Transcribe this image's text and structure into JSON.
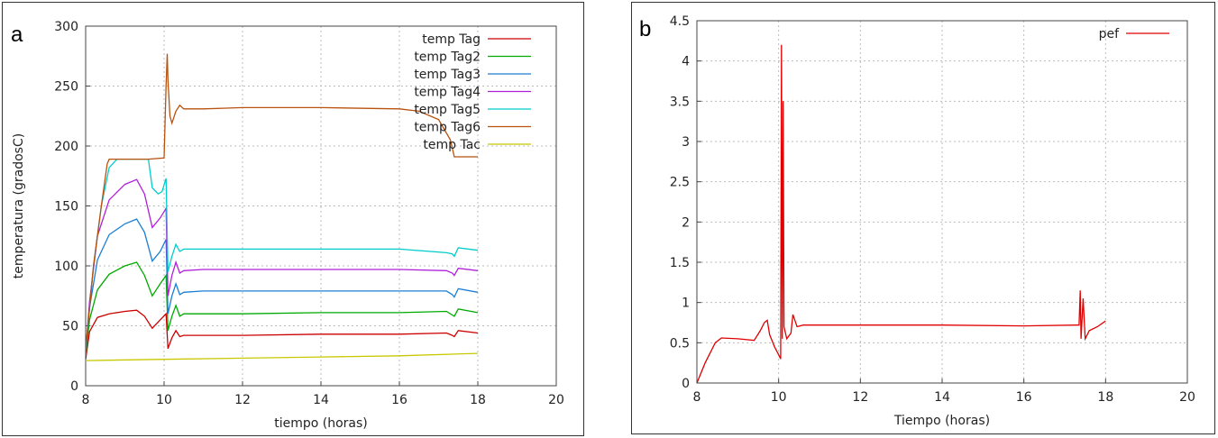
{
  "panels": {
    "a": {
      "letter": "a"
    },
    "b": {
      "letter": "b"
    }
  },
  "chart_data": [
    {
      "type": "line",
      "xlabel": "tiempo (horas)",
      "ylabel": "temperatura (gradosC)",
      "xlim": [
        8,
        20
      ],
      "ylim": [
        0,
        300
      ],
      "xticks": [
        8,
        10,
        12,
        14,
        16,
        18,
        20
      ],
      "yticks": [
        0,
        50,
        100,
        150,
        200,
        250,
        300
      ],
      "grid": true,
      "legend_position": "top-right",
      "series": [
        {
          "name": "temp Tag",
          "color": "#cc0000",
          "points": [
            [
              8.0,
              22
            ],
            [
              8.1,
              45
            ],
            [
              8.3,
              57
            ],
            [
              8.6,
              60
            ],
            [
              9.0,
              62
            ],
            [
              9.3,
              63
            ],
            [
              9.5,
              58
            ],
            [
              9.7,
              48
            ],
            [
              9.9,
              55
            ],
            [
              10.05,
              60
            ],
            [
              10.1,
              31
            ],
            [
              10.2,
              40
            ],
            [
              10.3,
              46
            ],
            [
              10.4,
              41
            ],
            [
              10.5,
              42
            ],
            [
              11,
              42
            ],
            [
              12,
              42
            ],
            [
              14,
              43
            ],
            [
              16,
              43
            ],
            [
              17.2,
              44
            ],
            [
              17.35,
              42
            ],
            [
              17.4,
              41
            ],
            [
              17.5,
              46
            ],
            [
              18,
              44
            ]
          ]
        },
        {
          "name": "temp Tag2",
          "color": "#00aa00",
          "points": [
            [
              8.0,
              25
            ],
            [
              8.1,
              55
            ],
            [
              8.3,
              80
            ],
            [
              8.6,
              93
            ],
            [
              9.0,
              100
            ],
            [
              9.3,
              103
            ],
            [
              9.5,
              92
            ],
            [
              9.7,
              75
            ],
            [
              9.9,
              85
            ],
            [
              10.05,
              92
            ],
            [
              10.1,
              46
            ],
            [
              10.2,
              58
            ],
            [
              10.3,
              67
            ],
            [
              10.4,
              58
            ],
            [
              10.5,
              60
            ],
            [
              11,
              60
            ],
            [
              12,
              60
            ],
            [
              14,
              61
            ],
            [
              16,
              61
            ],
            [
              17.2,
              62
            ],
            [
              17.35,
              59
            ],
            [
              17.4,
              58
            ],
            [
              17.5,
              64
            ],
            [
              18,
              61
            ]
          ]
        },
        {
          "name": "temp Tag3",
          "color": "#1a7fd4",
          "points": [
            [
              8.0,
              27
            ],
            [
              8.1,
              65
            ],
            [
              8.3,
              105
            ],
            [
              8.6,
              126
            ],
            [
              9.0,
              135
            ],
            [
              9.3,
              139
            ],
            [
              9.5,
              128
            ],
            [
              9.7,
              104
            ],
            [
              9.9,
              112
            ],
            [
              10.05,
              122
            ],
            [
              10.1,
              60
            ],
            [
              10.2,
              75
            ],
            [
              10.3,
              85
            ],
            [
              10.4,
              76
            ],
            [
              10.5,
              78
            ],
            [
              11,
              79
            ],
            [
              12,
              79
            ],
            [
              14,
              79
            ],
            [
              16,
              79
            ],
            [
              17.2,
              79
            ],
            [
              17.35,
              76
            ],
            [
              17.4,
              74
            ],
            [
              17.5,
              81
            ],
            [
              18,
              78
            ]
          ]
        },
        {
          "name": "temp Tag4",
          "color": "#b020d8",
          "points": [
            [
              8.0,
              28
            ],
            [
              8.1,
              70
            ],
            [
              8.3,
              125
            ],
            [
              8.6,
              155
            ],
            [
              9.0,
              168
            ],
            [
              9.3,
              172
            ],
            [
              9.5,
              160
            ],
            [
              9.7,
              132
            ],
            [
              9.9,
              140
            ],
            [
              10.05,
              148
            ],
            [
              10.1,
              75
            ],
            [
              10.2,
              92
            ],
            [
              10.3,
              103
            ],
            [
              10.4,
              94
            ],
            [
              10.5,
              96
            ],
            [
              11,
              97
            ],
            [
              12,
              97
            ],
            [
              14,
              97
            ],
            [
              16,
              97
            ],
            [
              17.2,
              96
            ],
            [
              17.35,
              94
            ],
            [
              17.4,
              92
            ],
            [
              17.5,
              98
            ],
            [
              18,
              96
            ]
          ]
        },
        {
          "name": "temp Tag5",
          "color": "#00cccc",
          "points": [
            [
              8.0,
              30
            ],
            [
              8.2,
              100
            ],
            [
              8.4,
              150
            ],
            [
              8.6,
              182
            ],
            [
              8.8,
              189
            ],
            [
              9.0,
              189
            ],
            [
              9.6,
              189
            ],
            [
              9.7,
              165
            ],
            [
              9.85,
              160
            ],
            [
              9.95,
              162
            ],
            [
              10.05,
              173
            ],
            [
              10.1,
              95
            ],
            [
              10.2,
              108
            ],
            [
              10.3,
              118
            ],
            [
              10.4,
              112
            ],
            [
              10.5,
              114
            ],
            [
              11,
              114
            ],
            [
              12,
              114
            ],
            [
              14,
              114
            ],
            [
              16,
              114
            ],
            [
              17.2,
              111
            ],
            [
              17.35,
              110
            ],
            [
              17.4,
              108
            ],
            [
              17.5,
              115
            ],
            [
              18,
              113
            ]
          ]
        },
        {
          "name": "temp Tag6",
          "color": "#b8520e",
          "points": [
            [
              8.0,
              30
            ],
            [
              8.2,
              100
            ],
            [
              8.4,
              150
            ],
            [
              8.55,
              185
            ],
            [
              8.6,
              189
            ],
            [
              9.0,
              189
            ],
            [
              9.6,
              189
            ],
            [
              10.0,
              190
            ],
            [
              10.05,
              250
            ],
            [
              10.08,
              277
            ],
            [
              10.1,
              255
            ],
            [
              10.15,
              225
            ],
            [
              10.2,
              219
            ],
            [
              10.3,
              229
            ],
            [
              10.4,
              234
            ],
            [
              10.5,
              231
            ],
            [
              11,
              231
            ],
            [
              12,
              232
            ],
            [
              14,
              232
            ],
            [
              16,
              231
            ],
            [
              16.5,
              229
            ],
            [
              17.0,
              222
            ],
            [
              17.3,
              205
            ],
            [
              17.4,
              191
            ],
            [
              18,
              191
            ]
          ]
        },
        {
          "name": "temp Tac",
          "color": "#c8c800",
          "points": [
            [
              8,
              21
            ],
            [
              10,
              22
            ],
            [
              12,
              23
            ],
            [
              14,
              24
            ],
            [
              16,
              25
            ],
            [
              18,
              27
            ]
          ]
        }
      ]
    },
    {
      "type": "line",
      "xlabel": "Tiempo (horas)",
      "ylabel": "",
      "xlim": [
        8,
        20
      ],
      "ylim": [
        0,
        4.5
      ],
      "xticks": [
        8,
        10,
        12,
        14,
        16,
        18,
        20
      ],
      "yticks": [
        0,
        0.5,
        1,
        1.5,
        2,
        2.5,
        3,
        3.5,
        4,
        4.5
      ],
      "grid": true,
      "legend_position": "top-right",
      "series": [
        {
          "name": "pef",
          "color": "#e00000",
          "points": [
            [
              8.0,
              0.0
            ],
            [
              8.2,
              0.25
            ],
            [
              8.45,
              0.5
            ],
            [
              8.6,
              0.56
            ],
            [
              9.0,
              0.55
            ],
            [
              9.4,
              0.53
            ],
            [
              9.55,
              0.65
            ],
            [
              9.65,
              0.75
            ],
            [
              9.72,
              0.78
            ],
            [
              9.78,
              0.6
            ],
            [
              9.9,
              0.45
            ],
            [
              10.0,
              0.35
            ],
            [
              10.05,
              0.3
            ],
            [
              10.07,
              4.2
            ],
            [
              10.09,
              0.55
            ],
            [
              10.11,
              3.5
            ],
            [
              10.13,
              0.7
            ],
            [
              10.2,
              0.55
            ],
            [
              10.3,
              0.62
            ],
            [
              10.35,
              0.85
            ],
            [
              10.45,
              0.7
            ],
            [
              10.6,
              0.72
            ],
            [
              12,
              0.72
            ],
            [
              14,
              0.72
            ],
            [
              16,
              0.71
            ],
            [
              17.3,
              0.72
            ],
            [
              17.35,
              0.72
            ],
            [
              17.38,
              1.15
            ],
            [
              17.4,
              0.55
            ],
            [
              17.45,
              1.05
            ],
            [
              17.5,
              0.55
            ],
            [
              17.6,
              0.65
            ],
            [
              17.8,
              0.7
            ],
            [
              18,
              0.77
            ]
          ]
        }
      ]
    }
  ]
}
